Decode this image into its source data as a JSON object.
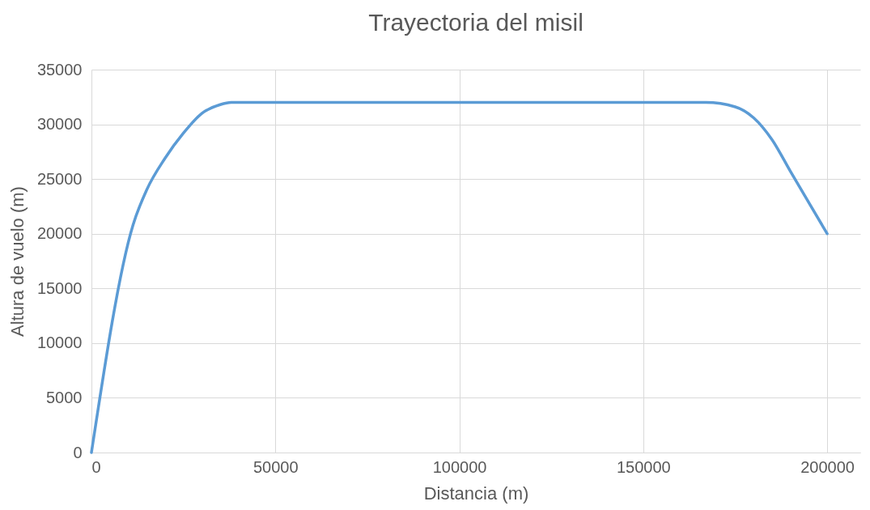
{
  "chart_data": {
    "type": "line",
    "title": "Trayectoria del misil",
    "xlabel": "Distancia (m)",
    "ylabel": "Altura de vuelo (m)",
    "x": [
      0,
      11300,
      15000,
      20000,
      25000,
      30000,
      35000,
      38000,
      167000,
      175000,
      180000,
      185000,
      190000,
      200000
    ],
    "series": [
      {
        "color": "#5b9bd5",
        "values": [
          0,
          20800,
          24000,
          26900,
          29200,
          31000,
          31800,
          32000,
          32000,
          31600,
          30600,
          28600,
          25700,
          20000
        ]
      }
    ],
    "xlim": [
      0,
      209000
    ],
    "xticks": [
      0,
      50000,
      100000,
      150000,
      200000
    ],
    "ylim": [
      0,
      35000
    ],
    "yticks": [
      0,
      5000,
      10000,
      15000,
      20000,
      25000,
      30000,
      35000
    ],
    "grid": true,
    "marker": "none",
    "line_style": "solid"
  }
}
